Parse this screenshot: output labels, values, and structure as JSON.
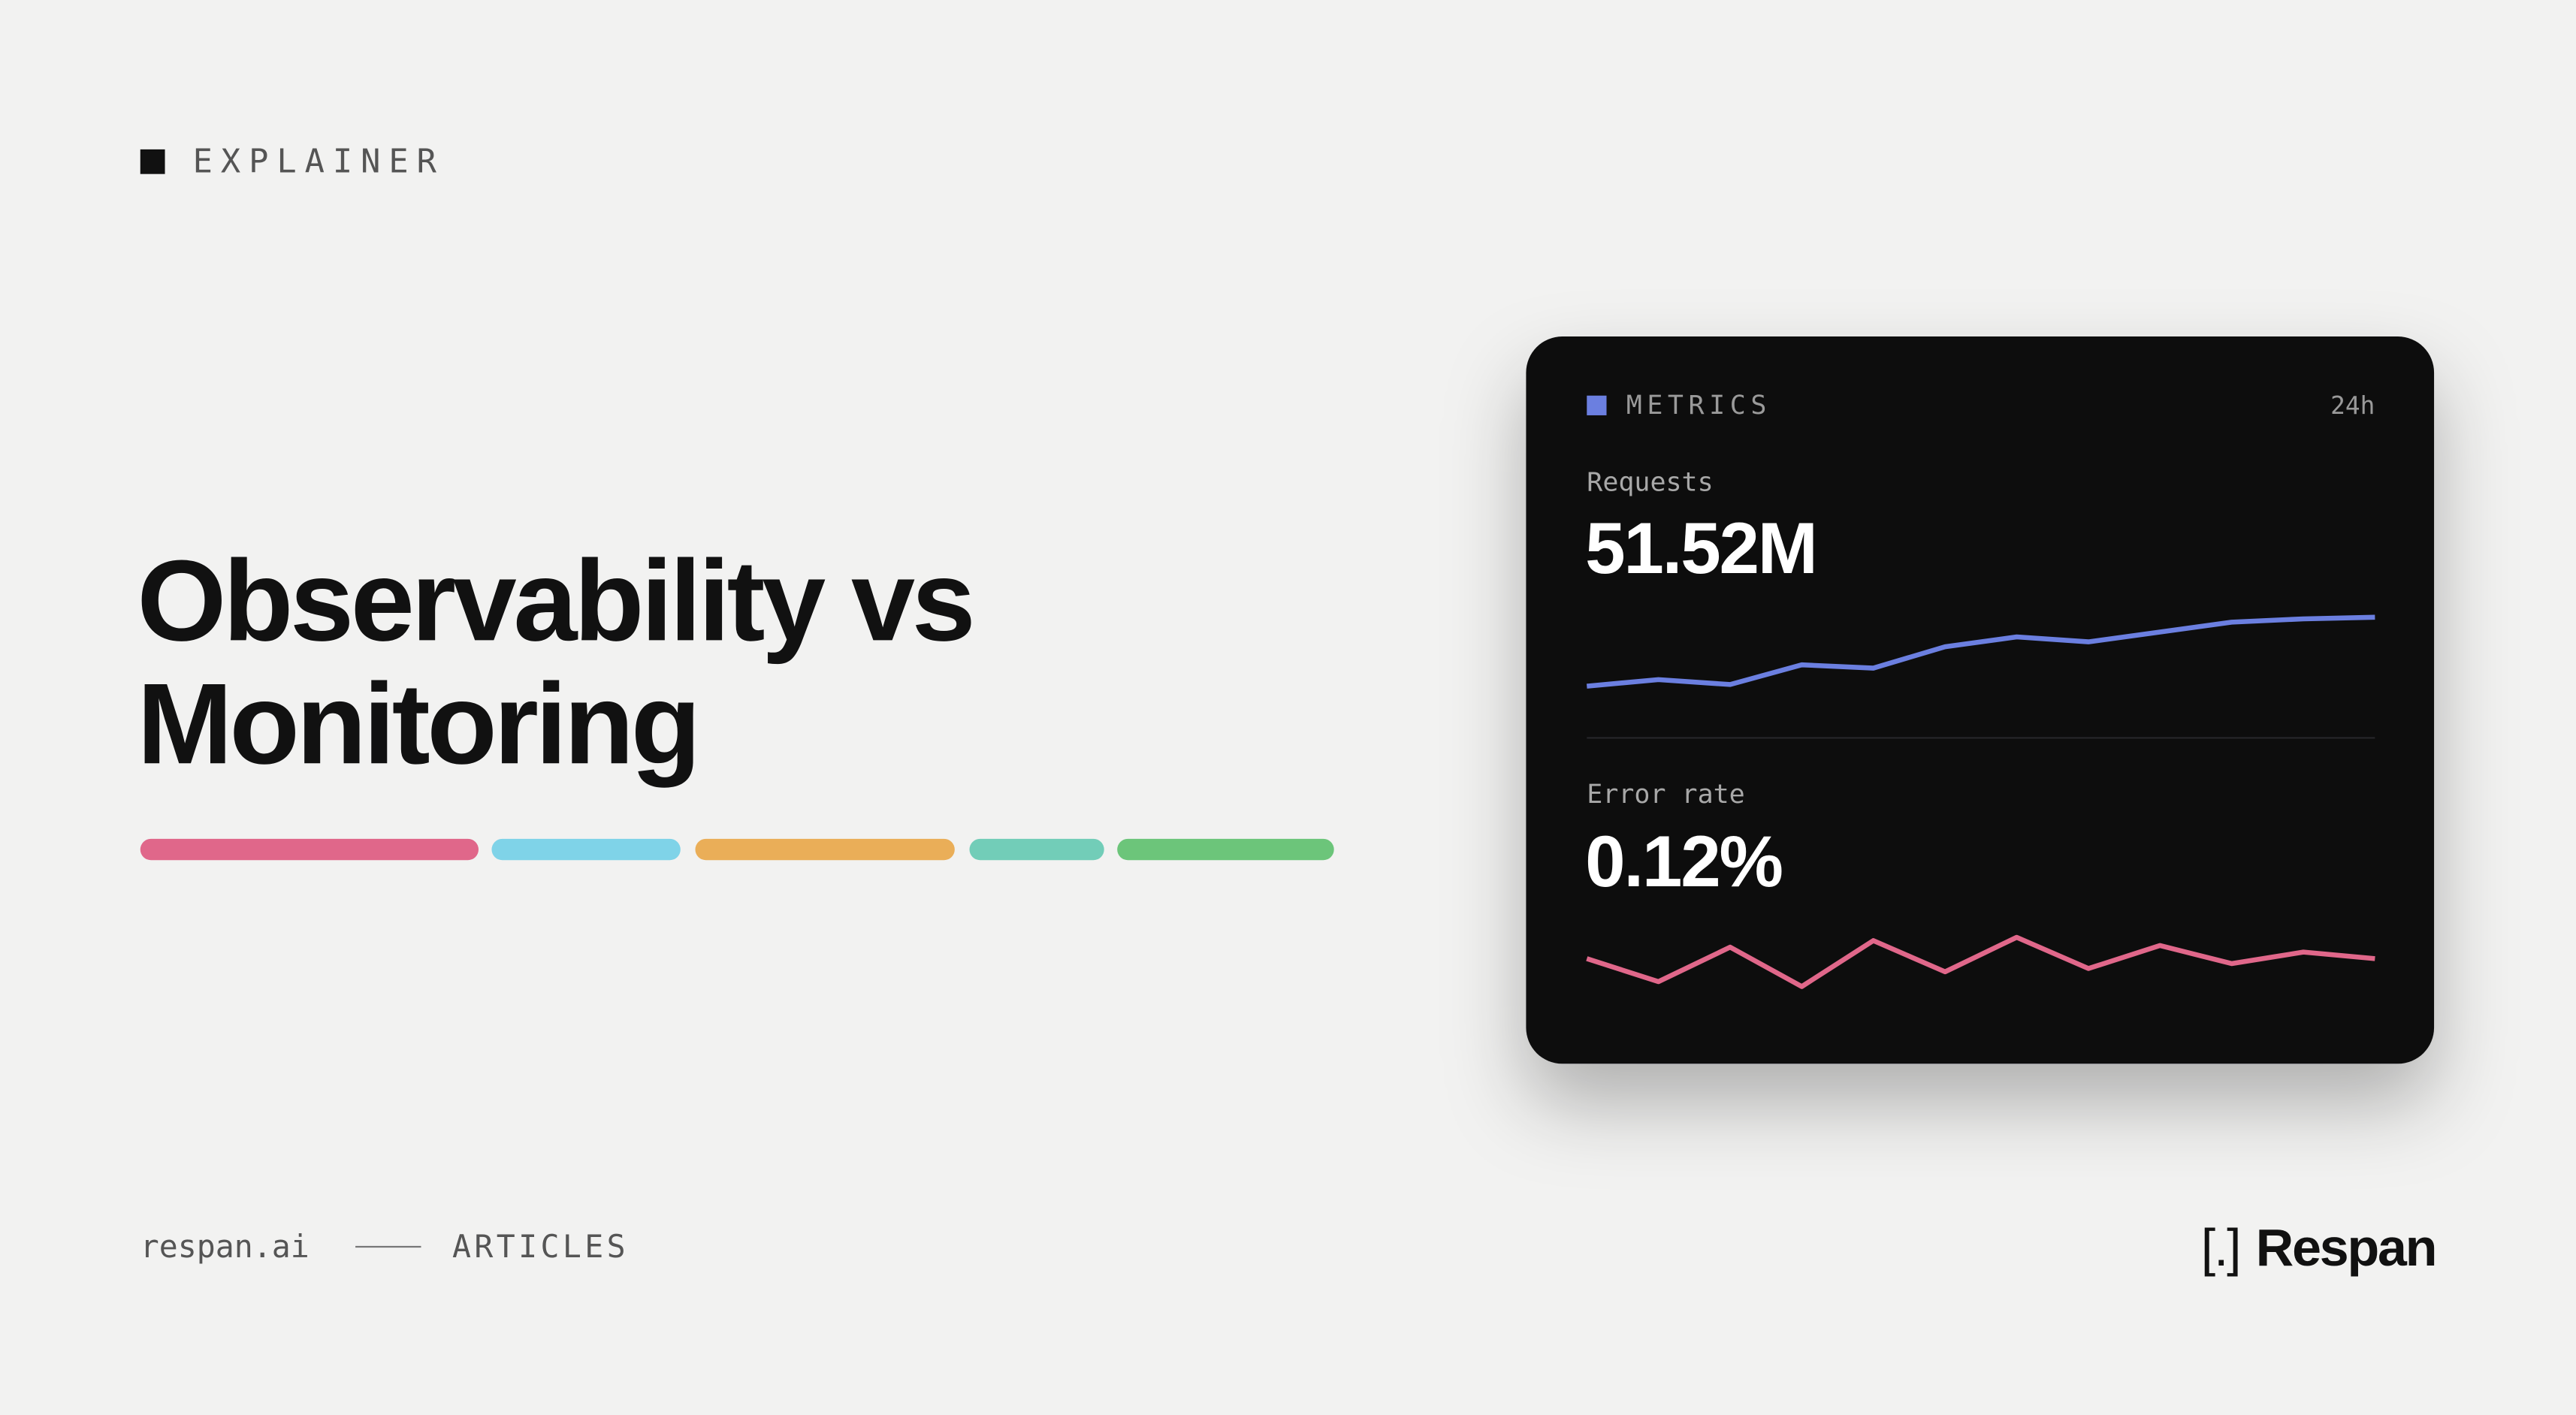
{
  "eyebrow": "EXPLAINER",
  "title": [
    "Observability vs",
    "Monitoring"
  ],
  "card": {
    "label": "METRICS",
    "range": "24h",
    "metrics": [
      {
        "name": "Requests",
        "value": "51.52M",
        "color": "#6b7fe0",
        "sparkline": [
          12,
          16,
          13,
          25,
          23,
          36,
          42,
          39,
          45,
          51,
          53,
          54
        ]
      },
      {
        "name": "Error rate",
        "value": "0.12%",
        "color": "#e0678a",
        "sparkline": [
          26,
          12,
          33,
          9,
          37,
          18,
          39,
          20,
          34,
          23,
          30,
          26
        ]
      }
    ]
  },
  "footer": {
    "site": "respan.ai",
    "section": "ARTICLES"
  },
  "logo": {
    "mark": "[.]",
    "name": "Respan"
  }
}
